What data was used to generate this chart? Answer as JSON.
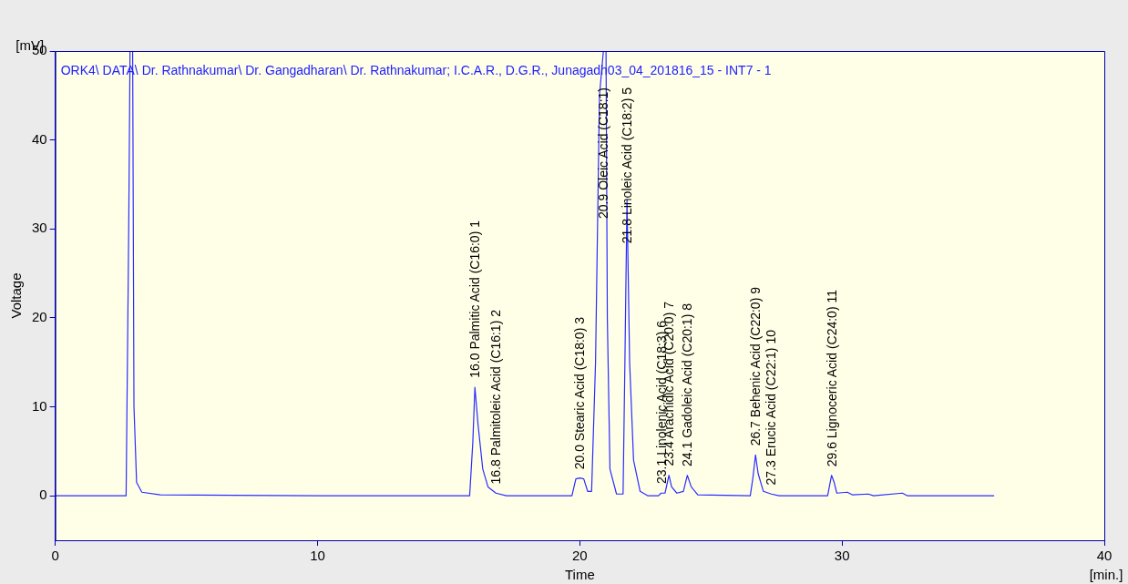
{
  "chart_data": {
    "type": "line",
    "title": "ORK4\\ DATA\\ Dr. Rathnakumar\\ Dr. Gangadharan\\ Dr. Rathnakumar; I.C.A.R., D.G.R., Junagadh03_04_201816_15 - INT7 - 1",
    "xlabel": "Time",
    "ylabel": "Voltage",
    "xlim": [
      0,
      40
    ],
    "xticks": [
      0,
      10,
      20,
      30,
      40
    ],
    "ylim": [
      -5,
      50
    ],
    "yticks": [
      0,
      10,
      20,
      30,
      40,
      50
    ],
    "legend": false,
    "grid": false,
    "marker": "none",
    "series": [
      {
        "color": "#2b2bff",
        "x": [
          0,
          2.7,
          2.8,
          2.85,
          2.95,
          3.0,
          3.1,
          3.3,
          4,
          10,
          15.8,
          15.92,
          16.0,
          16.12,
          16.3,
          16.5,
          16.8,
          17.2,
          19.7,
          19.85,
          20.0,
          20.15,
          20.3,
          20.45,
          20.6,
          20.75,
          20.9,
          21.0,
          21.05,
          21.15,
          21.4,
          21.65,
          21.72,
          21.8,
          21.9,
          22.05,
          22.3,
          22.6,
          23.0,
          23.1,
          23.25,
          23.4,
          23.5,
          23.7,
          23.95,
          24.1,
          24.25,
          24.5,
          26.5,
          26.6,
          26.7,
          26.8,
          27.0,
          27.3,
          27.6,
          29.45,
          29.6,
          29.7,
          29.8,
          30.2,
          30.4,
          31.0,
          31.2,
          32.3,
          32.5,
          35.8
        ],
        "values": [
          0,
          0,
          30,
          50,
          50,
          10,
          1.5,
          0.4,
          0.1,
          0,
          0,
          6,
          12.2,
          8,
          3,
          1,
          0.3,
          0,
          0,
          1.9,
          2.0,
          1.9,
          0.5,
          0.5,
          15,
          45,
          50,
          50,
          20,
          3,
          0.2,
          0.2,
          15,
          33.3,
          15,
          4,
          0.5,
          0,
          0,
          0.3,
          0.3,
          2.3,
          1,
          0.3,
          0.5,
          2.3,
          1,
          0.1,
          0,
          2,
          4.6,
          2.5,
          0.5,
          0.2,
          0,
          0,
          2.3,
          1.5,
          0.3,
          0.4,
          0.1,
          0.2,
          0,
          0.3,
          0,
          0
        ]
      }
    ],
    "annotations": [
      "[mV]",
      "[min.]",
      {
        "text": "16.0 Palmitic Acid (C16:0)   1",
        "x": 16.0,
        "y": 12.2
      },
      {
        "text": "16.8 Palmitoleic Acid (C16:1)   2",
        "x": 16.8,
        "y": 0.3
      },
      {
        "text": "20.0 Stearic Acid (C18:0)   3",
        "x": 20.0,
        "y": 2.0
      },
      {
        "text": "20.9 Oleic Acid (C18:1)",
        "x": 20.9,
        "y": 50
      },
      {
        "text": "21.8 Linoleic Acid (C18:2)   5",
        "x": 21.8,
        "y": 33.3
      },
      {
        "text": "23.1 Linolenic Acid (C18:3)   6",
        "x": 23.1,
        "y": 0.3
      },
      {
        "text": "23.4 Arachidic Acid (C20:0)   7",
        "x": 23.4,
        "y": 2.3
      },
      {
        "text": "24.1 Gadoleic Acid (C20:1)   8",
        "x": 24.1,
        "y": 2.3
      },
      {
        "text": "26.7 Behenic Acid (C22:0)   9",
        "x": 26.7,
        "y": 4.6
      },
      {
        "text": "27.3 Erucic Acid (C22:1)   10",
        "x": 27.3,
        "y": 0.2
      },
      {
        "text": "29.6 Lignoceric Acid (C24:0)   11",
        "x": 29.6,
        "y": 2.3
      }
    ]
  }
}
